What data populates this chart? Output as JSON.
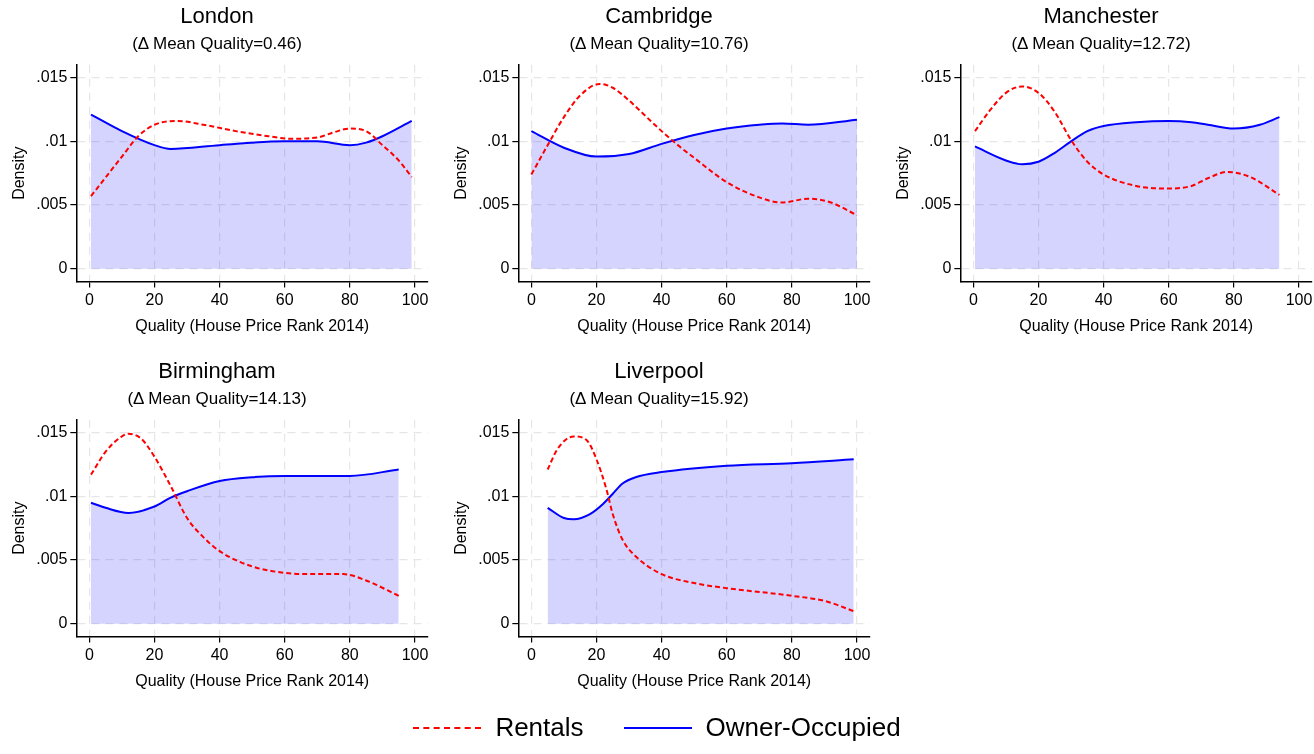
{
  "chart_data": [
    {
      "type": "line",
      "title": "London",
      "subtitle": "(Δ Mean Quality=0.46)",
      "xlabel": "Quality (House Price Rank 2014)",
      "ylabel": "Density",
      "xlim": [
        -4,
        104
      ],
      "xticks": [
        0,
        20,
        40,
        60,
        80,
        100
      ],
      "ylim": [
        -0.001,
        0.016
      ],
      "yticks": [
        {
          "value": 0,
          "label": "0"
        },
        {
          "value": 0.005,
          "label": ".005"
        },
        {
          "value": 0.01,
          "label": ".01"
        },
        {
          "value": 0.015,
          "label": ".015"
        }
      ],
      "grid": true,
      "marker": "none",
      "legend": "bottom",
      "series": [
        {
          "name": "Rentals",
          "type": "line",
          "line_style": "dashed",
          "color": "#ff0000",
          "x": [
            0.5,
            10,
            15,
            20,
            27,
            35,
            45,
            55,
            62,
            70,
            75,
            80,
            85,
            90,
            95,
            99
          ],
          "values": [
            0.0057,
            0.0088,
            0.0104,
            0.0113,
            0.0116,
            0.0113,
            0.0108,
            0.0104,
            0.0102,
            0.0103,
            0.0107,
            0.011,
            0.0108,
            0.0097,
            0.0085,
            0.0072
          ]
        },
        {
          "name": "Owner-Occupied",
          "type": "area",
          "line_style": "solid",
          "color": "#0000ff",
          "x": [
            0.5,
            10,
            20,
            25,
            40,
            60,
            70,
            80,
            85,
            90,
            99
          ],
          "values": [
            0.0121,
            0.0108,
            0.0097,
            0.0094,
            0.0097,
            0.01,
            0.01,
            0.0097,
            0.0099,
            0.0104,
            0.0116
          ]
        }
      ]
    },
    {
      "type": "line",
      "title": "Cambridge",
      "subtitle": "(Δ Mean Quality=10.76)",
      "xlabel": "Quality (House Price Rank 2014)",
      "ylabel": "Density",
      "xlim": [
        -4,
        104
      ],
      "xticks": [
        0,
        20,
        40,
        60,
        80,
        100
      ],
      "ylim": [
        -0.001,
        0.016
      ],
      "yticks": [
        {
          "value": 0,
          "label": "0"
        },
        {
          "value": 0.005,
          "label": ".005"
        },
        {
          "value": 0.01,
          "label": ".01"
        },
        {
          "value": 0.015,
          "label": ".015"
        }
      ],
      "grid": true,
      "marker": "none",
      "series": [
        {
          "type": "line",
          "line_style": "dashed",
          "color": "#ff0000",
          "x": [
            0,
            5,
            10,
            15,
            21,
            25,
            30,
            35,
            40,
            45,
            50,
            60,
            70,
            77,
            85,
            92,
            100
          ],
          "values": [
            0.0074,
            0.0097,
            0.0119,
            0.0136,
            0.0145,
            0.0142,
            0.0132,
            0.012,
            0.0108,
            0.0097,
            0.0087,
            0.0068,
            0.0056,
            0.0052,
            0.0055,
            0.0052,
            0.0042
          ]
        },
        {
          "type": "area",
          "line_style": "solid",
          "color": "#0000ff",
          "x": [
            0,
            10,
            20,
            30,
            40,
            50,
            60,
            70,
            77,
            85,
            100
          ],
          "values": [
            0.0108,
            0.0095,
            0.0088,
            0.009,
            0.0098,
            0.0105,
            0.011,
            0.0113,
            0.0114,
            0.0113,
            0.0117
          ]
        }
      ]
    },
    {
      "type": "line",
      "title": "Manchester",
      "subtitle": "(Δ Mean Quality=12.72)",
      "xlabel": "Quality (House Price Rank 2014)",
      "ylabel": "Density",
      "xlim": [
        -4,
        104
      ],
      "xticks": [
        0,
        20,
        40,
        60,
        80,
        100
      ],
      "ylim": [
        -0.001,
        0.016
      ],
      "yticks": [
        {
          "value": 0,
          "label": "0"
        },
        {
          "value": 0.005,
          "label": ".005"
        },
        {
          "value": 0.01,
          "label": ".01"
        },
        {
          "value": 0.015,
          "label": ".015"
        }
      ],
      "grid": true,
      "marker": "none",
      "series": [
        {
          "type": "line",
          "line_style": "dashed",
          "color": "#ff0000",
          "x": [
            0.5,
            5,
            10,
            15,
            20,
            25,
            30,
            35,
            40,
            50,
            60,
            67,
            72,
            78,
            85,
            94
          ],
          "values": [
            0.0108,
            0.0124,
            0.0138,
            0.0143,
            0.0138,
            0.0123,
            0.0101,
            0.0084,
            0.0074,
            0.0065,
            0.0063,
            0.0065,
            0.0071,
            0.0076,
            0.0072,
            0.0058
          ]
        },
        {
          "type": "area",
          "line_style": "solid",
          "color": "#0000ff",
          "x": [
            0.5,
            10,
            15,
            20,
            25,
            30,
            35,
            40,
            50,
            60,
            67,
            72,
            80,
            88,
            94
          ],
          "values": [
            0.0096,
            0.0085,
            0.0082,
            0.0084,
            0.0091,
            0.01,
            0.0108,
            0.0112,
            0.0115,
            0.0116,
            0.0115,
            0.0113,
            0.011,
            0.0113,
            0.0119
          ]
        }
      ]
    },
    {
      "type": "line",
      "title": "Birmingham",
      "subtitle": "(Δ Mean Quality=14.13)",
      "xlabel": "Quality (House Price Rank 2014)",
      "ylabel": "Density",
      "xlim": [
        -4,
        104
      ],
      "xticks": [
        0,
        20,
        40,
        60,
        80,
        100
      ],
      "ylim": [
        -0.001,
        0.016
      ],
      "yticks": [
        {
          "value": 0,
          "label": "0"
        },
        {
          "value": 0.005,
          "label": ".005"
        },
        {
          "value": 0.01,
          "label": ".01"
        },
        {
          "value": 0.015,
          "label": ".015"
        }
      ],
      "grid": true,
      "marker": "none",
      "series": [
        {
          "type": "line",
          "line_style": "dashed",
          "color": "#ff0000",
          "x": [
            0.5,
            5,
            10,
            12,
            16,
            20,
            25,
            30,
            35,
            40,
            50,
            60,
            70,
            78,
            85,
            95
          ],
          "values": [
            0.0117,
            0.0135,
            0.0147,
            0.0149,
            0.0145,
            0.0131,
            0.0108,
            0.0083,
            0.0068,
            0.0057,
            0.0045,
            0.004,
            0.0039,
            0.0039,
            0.0034,
            0.0022
          ]
        },
        {
          "type": "area",
          "line_style": "solid",
          "color": "#0000ff",
          "x": [
            0.5,
            5,
            12,
            20,
            25,
            30,
            40,
            50,
            60,
            80,
            95
          ],
          "values": [
            0.0095,
            0.0091,
            0.0087,
            0.0092,
            0.0099,
            0.0104,
            0.0112,
            0.0115,
            0.0116,
            0.0116,
            0.0121
          ]
        }
      ]
    },
    {
      "type": "line",
      "title": "Liverpool",
      "subtitle": "(Δ Mean Quality=15.92)",
      "xlabel": "Quality (House Price Rank 2014)",
      "ylabel": "Density",
      "xlim": [
        -4,
        104
      ],
      "xticks": [
        0,
        20,
        40,
        60,
        80,
        100
      ],
      "ylim": [
        -0.001,
        0.016
      ],
      "yticks": [
        {
          "value": 0,
          "label": "0"
        },
        {
          "value": 0.005,
          "label": ".005"
        },
        {
          "value": 0.01,
          "label": ".01"
        },
        {
          "value": 0.015,
          "label": ".015"
        }
      ],
      "grid": true,
      "marker": "none",
      "series": [
        {
          "type": "line",
          "line_style": "dashed",
          "color": "#ff0000",
          "x": [
            5,
            8,
            13,
            17,
            20,
            23,
            25,
            28,
            32,
            40,
            50,
            60,
            80,
            90,
            99
          ],
          "values": [
            0.0121,
            0.0137,
            0.0147,
            0.0144,
            0.0129,
            0.0106,
            0.0086,
            0.0066,
            0.0053,
            0.0039,
            0.0032,
            0.0028,
            0.0022,
            0.0018,
            0.001
          ]
        },
        {
          "type": "area",
          "line_style": "solid",
          "color": "#0000ff",
          "x": [
            5,
            10,
            13,
            18,
            22,
            25,
            28,
            32,
            40,
            60,
            80,
            99
          ],
          "values": [
            0.0091,
            0.0083,
            0.0082,
            0.0086,
            0.0094,
            0.0102,
            0.011,
            0.0115,
            0.0119,
            0.0124,
            0.0126,
            0.0129
          ]
        }
      ]
    }
  ]
}
